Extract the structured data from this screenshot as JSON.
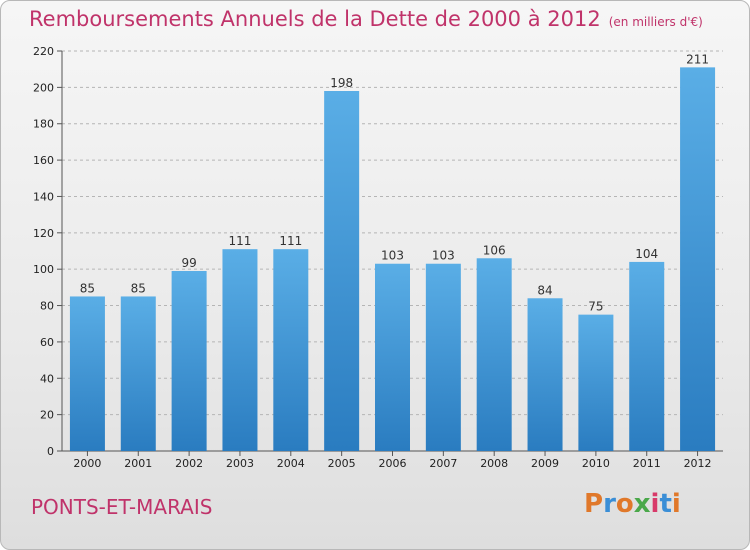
{
  "header": {
    "title": "Remboursements Annuels de la Dette de 2000 à 2012",
    "unit": "(en milliers d'€)"
  },
  "footer": {
    "city": "PONTS-ET-MARAIS",
    "brand": "Proxiti"
  },
  "colors": {
    "title": "#c0336a",
    "bar_light": "#5aaee6",
    "bar_dark": "#2a7cc0",
    "brand_letters": [
      "#e0782a",
      "#3a8ed6",
      "#e0782a",
      "#4aa84a",
      "#d83a6a",
      "#3a8ed6",
      "#e0782a"
    ]
  },
  "chart_data": {
    "type": "bar",
    "title": "Remboursements Annuels de la Dette de 2000 à 2012",
    "categories": [
      "2000",
      "2001",
      "2002",
      "2003",
      "2004",
      "2005",
      "2006",
      "2007",
      "2008",
      "2009",
      "2010",
      "2011",
      "2012"
    ],
    "values": [
      85,
      85,
      99,
      111,
      111,
      198,
      103,
      103,
      106,
      84,
      75,
      104,
      211
    ],
    "xlabel": "",
    "ylabel": "",
    "ylim": [
      0,
      220
    ],
    "yticks": [
      0,
      20,
      40,
      60,
      80,
      100,
      120,
      140,
      160,
      180,
      200,
      220
    ],
    "grid": "horizontal dashed"
  }
}
